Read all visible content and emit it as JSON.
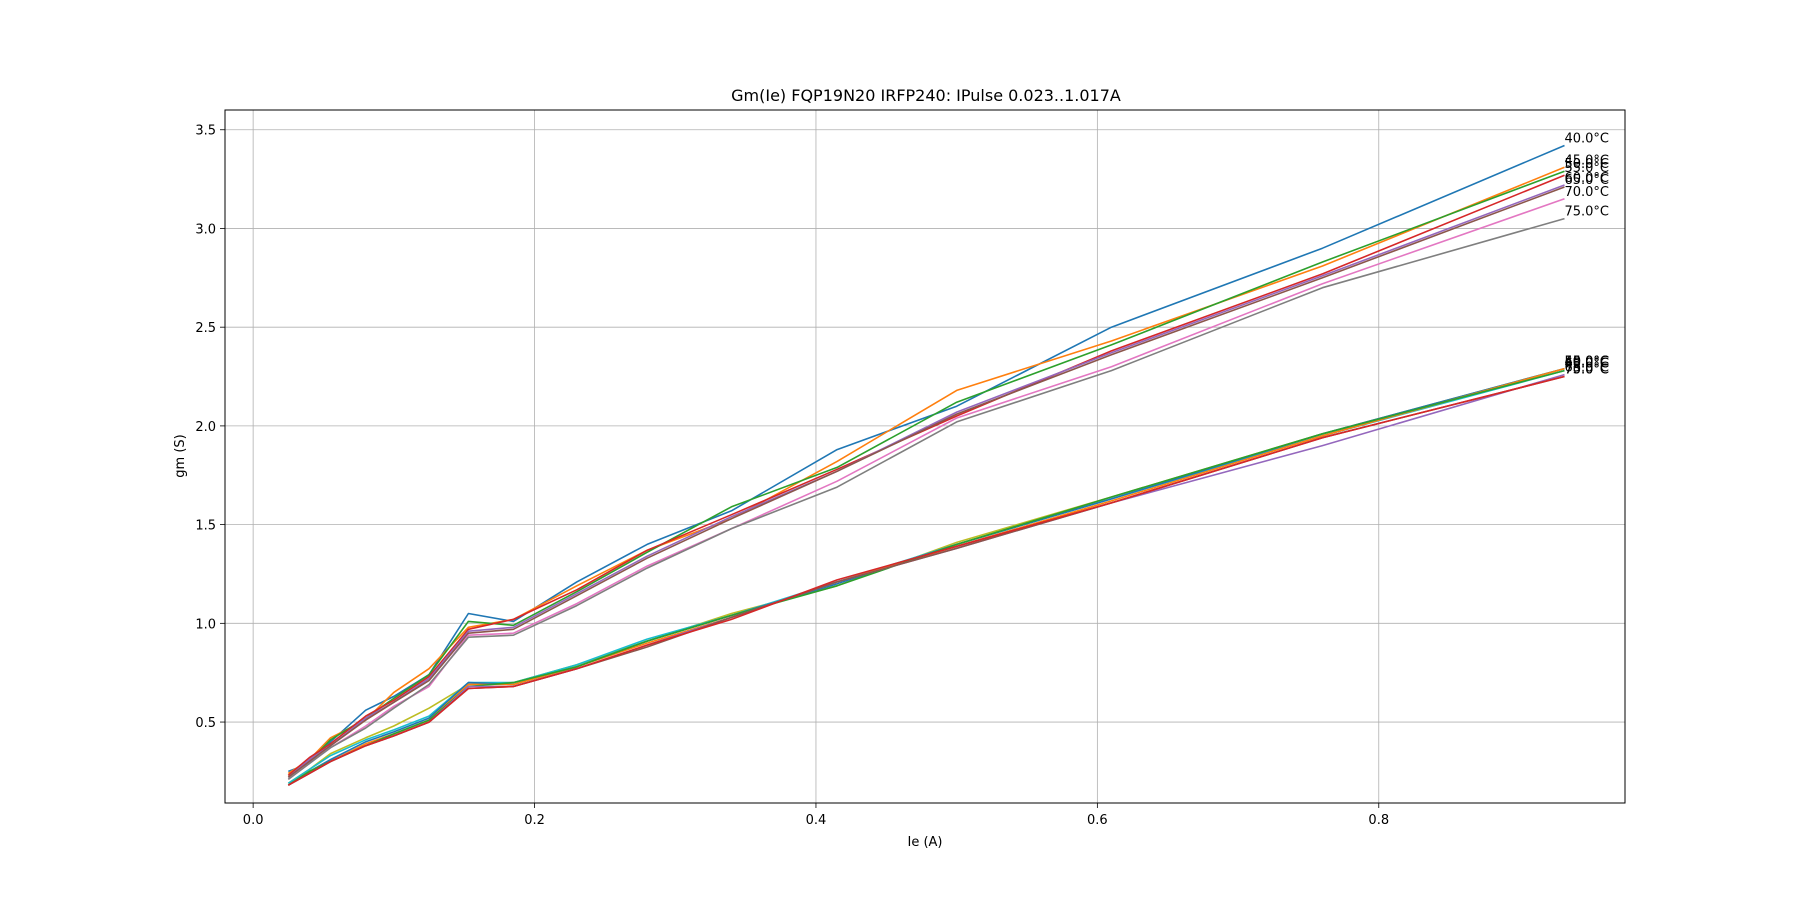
{
  "chart_data": {
    "type": "line",
    "title": "Gm(Ie) FQP19N20 IRFP240: IPulse 0.023..1.017A",
    "xlabel": "Ie (A)",
    "ylabel": "gm (S)",
    "xlim": [
      -0.02,
      0.975
    ],
    "ylim": [
      0.09,
      3.6
    ],
    "xticks": [
      0.0,
      0.2,
      0.4,
      0.6,
      0.8
    ],
    "xtick_labels": [
      "0.0",
      "0.2",
      "0.4",
      "0.6",
      "0.8"
    ],
    "yticks": [
      0.5,
      1.0,
      1.5,
      2.0,
      2.5,
      3.0,
      3.5
    ],
    "ytick_labels": [
      "0.5",
      "1.0",
      "1.5",
      "2.0",
      "2.5",
      "3.0",
      "3.5"
    ],
    "grid": true,
    "legend": "none",
    "x": [
      0.025,
      0.04,
      0.055,
      0.08,
      0.1,
      0.125,
      0.153,
      0.185,
      0.23,
      0.28,
      0.34,
      0.415,
      0.5,
      0.61,
      0.76,
      0.932
    ],
    "series": [
      {
        "name": "40.0°C",
        "color": "#1f77b4",
        "values": [
          0.25,
          0.29,
          0.4,
          0.56,
          0.63,
          0.74,
          1.05,
          1.01,
          1.21,
          1.4,
          1.57,
          1.88,
          2.1,
          2.5,
          2.9,
          3.42
        ]
      },
      {
        "name": "45.0°C",
        "color": "#ff7f0e",
        "values": [
          0.24,
          0.31,
          0.42,
          0.51,
          0.65,
          0.77,
          0.98,
          1.02,
          1.19,
          1.37,
          1.53,
          1.82,
          2.18,
          2.43,
          2.81,
          3.31
        ]
      },
      {
        "name": "50.0°C",
        "color": "#2ca02c",
        "values": [
          0.23,
          0.3,
          0.41,
          0.52,
          0.62,
          0.74,
          1.01,
          0.99,
          1.16,
          1.36,
          1.59,
          1.79,
          2.12,
          2.41,
          2.83,
          3.29
        ]
      },
      {
        "name": "55.0°C",
        "color": "#d62728",
        "values": [
          0.23,
          0.32,
          0.39,
          0.53,
          0.61,
          0.73,
          0.97,
          1.02,
          1.17,
          1.37,
          1.55,
          1.78,
          2.05,
          2.38,
          2.77,
          3.27
        ]
      },
      {
        "name": "60.0°C",
        "color": "#9467bd",
        "values": [
          0.22,
          0.31,
          0.38,
          0.52,
          0.6,
          0.72,
          0.96,
          0.98,
          1.15,
          1.34,
          1.54,
          1.77,
          2.07,
          2.37,
          2.76,
          3.22
        ]
      },
      {
        "name": "65.0°C",
        "color": "#8c564b",
        "values": [
          0.22,
          0.3,
          0.38,
          0.51,
          0.6,
          0.71,
          0.95,
          0.97,
          1.14,
          1.33,
          1.53,
          1.77,
          2.06,
          2.36,
          2.75,
          3.21
        ]
      },
      {
        "name": "70.0°C",
        "color": "#e377c2",
        "values": [
          0.21,
          0.29,
          0.37,
          0.48,
          0.58,
          0.68,
          0.94,
          0.95,
          1.1,
          1.29,
          1.48,
          1.72,
          2.04,
          2.3,
          2.72,
          3.15
        ]
      },
      {
        "name": "75.0°C",
        "color": "#7f7f7f",
        "values": [
          0.21,
          0.29,
          0.37,
          0.47,
          0.57,
          0.69,
          0.93,
          0.94,
          1.09,
          1.28,
          1.48,
          1.69,
          2.02,
          2.28,
          2.7,
          3.05
        ]
      },
      {
        "name": "40.0°C",
        "color": "#bcbd22",
        "values": [
          0.19,
          0.26,
          0.34,
          0.42,
          0.48,
          0.57,
          0.69,
          0.7,
          0.79,
          0.91,
          1.05,
          1.19,
          1.41,
          1.64,
          1.96,
          2.29
        ]
      },
      {
        "name": "45.0°C",
        "color": "#17becf",
        "values": [
          0.19,
          0.26,
          0.33,
          0.41,
          0.46,
          0.53,
          0.7,
          0.7,
          0.79,
          0.92,
          1.04,
          1.21,
          1.4,
          1.63,
          1.95,
          2.28
        ]
      },
      {
        "name": "50.0°C",
        "color": "#1f77b4",
        "values": [
          0.18,
          0.25,
          0.31,
          0.4,
          0.45,
          0.52,
          0.7,
          0.69,
          0.78,
          0.91,
          1.04,
          1.2,
          1.4,
          1.63,
          1.96,
          2.29
        ]
      },
      {
        "name": "55.0°C",
        "color": "#ff7f0e",
        "values": [
          0.18,
          0.25,
          0.3,
          0.39,
          0.44,
          0.51,
          0.69,
          0.69,
          0.78,
          0.9,
          1.03,
          1.21,
          1.39,
          1.62,
          1.95,
          2.29
        ]
      },
      {
        "name": "60.0°C",
        "color": "#2ca02c",
        "values": [
          0.18,
          0.25,
          0.3,
          0.38,
          0.44,
          0.51,
          0.68,
          0.7,
          0.78,
          0.91,
          1.04,
          1.19,
          1.4,
          1.64,
          1.96,
          2.28
        ]
      },
      {
        "name": "65.0°C",
        "color": "#9467bd",
        "values": [
          0.18,
          0.24,
          0.3,
          0.38,
          0.43,
          0.5,
          0.68,
          0.68,
          0.77,
          0.89,
          1.03,
          1.21,
          1.38,
          1.61,
          1.9,
          2.26
        ]
      },
      {
        "name": "70.0°C",
        "color": "#8c564b",
        "values": [
          0.18,
          0.24,
          0.3,
          0.38,
          0.43,
          0.5,
          0.67,
          0.68,
          0.77,
          0.88,
          1.03,
          1.21,
          1.38,
          1.61,
          1.94,
          2.25
        ]
      },
      {
        "name": "75.0°C",
        "color": "#d62728",
        "values": [
          0.18,
          0.24,
          0.3,
          0.38,
          0.43,
          0.5,
          0.67,
          0.68,
          0.77,
          0.89,
          1.02,
          1.22,
          1.39,
          1.61,
          1.94,
          2.25
        ]
      }
    ]
  }
}
